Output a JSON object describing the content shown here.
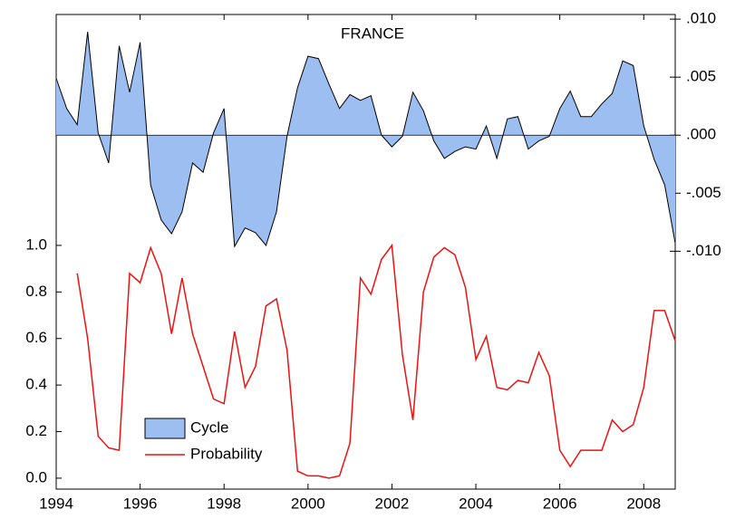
{
  "chart_data": {
    "type": "area-line",
    "title": "FRANCE",
    "x": [
      1994,
      1994.25,
      1994.5,
      1994.75,
      1995,
      1995.25,
      1995.5,
      1995.75,
      1996,
      1996.25,
      1996.5,
      1996.75,
      1997,
      1997.25,
      1997.5,
      1997.75,
      1998,
      1998.25,
      1998.5,
      1998.75,
      1999,
      1999.25,
      1999.5,
      1999.75,
      2000,
      2000.25,
      2000.5,
      2000.75,
      2001,
      2001.25,
      2001.5,
      2001.75,
      2002,
      2002.25,
      2002.5,
      2002.75,
      2003,
      2003.25,
      2003.5,
      2003.75,
      2004,
      2004.25,
      2004.5,
      2004.75,
      2005,
      2005.25,
      2005.5,
      2005.75,
      2006,
      2006.25,
      2006.5,
      2006.75,
      2007,
      2007.25,
      2007.5,
      2007.75,
      2008,
      2008.25,
      2008.5,
      2008.75
    ],
    "series": [
      {
        "name": "Cycle",
        "color": "#9dbef0",
        "axis": "y2",
        "values": [
          0.0049,
          0.0023,
          0.0009,
          0.0089,
          0.0002,
          -0.0024,
          0.0077,
          0.0037,
          0.008,
          -0.0043,
          -0.0073,
          -0.0085,
          -0.0066,
          -0.0024,
          -0.0032,
          0.0002,
          0.0023,
          -0.0096,
          -0.008,
          -0.0084,
          -0.0095,
          -0.0066,
          -0.0001,
          0.0041,
          0.0068,
          0.0066,
          0.0044,
          0.0023,
          0.0035,
          0.003,
          0.0034,
          0.0,
          -0.001,
          -0.0001,
          0.0037,
          0.0021,
          -0.0005,
          -0.002,
          -0.0014,
          -0.001,
          -0.0012,
          0.0008,
          -0.002,
          0.0014,
          0.0016,
          -0.0012,
          -0.0005,
          -0.0001,
          0.0023,
          0.0038,
          0.0016,
          0.0016,
          0.0027,
          0.0036,
          0.0064,
          0.006,
          0.0008,
          -0.0021,
          -0.0043,
          -0.0093
        ]
      },
      {
        "name": "Probability",
        "color": "#ee1111",
        "values": [
          null,
          null,
          0.88,
          0.6,
          0.18,
          0.13,
          0.12,
          0.88,
          0.84,
          0.99,
          0.88,
          0.62,
          0.86,
          0.62,
          0.48,
          0.34,
          0.32,
          0.63,
          0.39,
          0.48,
          0.74,
          0.77,
          0.55,
          0.03,
          0.01,
          0.01,
          0.0,
          0.01,
          0.15,
          0.86,
          0.79,
          0.94,
          1.0,
          0.53,
          0.25,
          0.8,
          0.95,
          0.99,
          0.96,
          0.82,
          0.51,
          0.61,
          0.39,
          0.38,
          0.42,
          0.41,
          0.54,
          0.44,
          0.12,
          0.05,
          0.12,
          0.12,
          0.12,
          0.25,
          0.2,
          0.23,
          0.39,
          0.72,
          0.72,
          0.59
        ]
      }
    ],
    "xlim": [
      1994,
      2008.75
    ],
    "xticks": [
      1994,
      1996,
      1998,
      2000,
      2002,
      2004,
      2006,
      2008
    ],
    "ylim": [
      -0.047,
      1.992
    ],
    "yticks": [
      {
        "value": 0,
        "label": "0.0"
      },
      {
        "value": 0.2,
        "label": "0.2"
      },
      {
        "value": 0.4,
        "label": "0.4"
      },
      {
        "value": 0.6,
        "label": "0.6"
      },
      {
        "value": 0.8,
        "label": "0.8"
      },
      {
        "value": 1,
        "label": "1.0"
      }
    ],
    "y2lim": [
      -0.0305,
      0.0104
    ],
    "y2ticks": [
      {
        "value": -0.01,
        "label": "-.010"
      },
      {
        "value": -0.005,
        "label": "-.005"
      },
      {
        "value": 0,
        "label": ".000"
      },
      {
        "value": 0.005,
        "label": ".005"
      },
      {
        "value": 0.01,
        "label": ".010"
      }
    ],
    "legend": "lower left"
  }
}
